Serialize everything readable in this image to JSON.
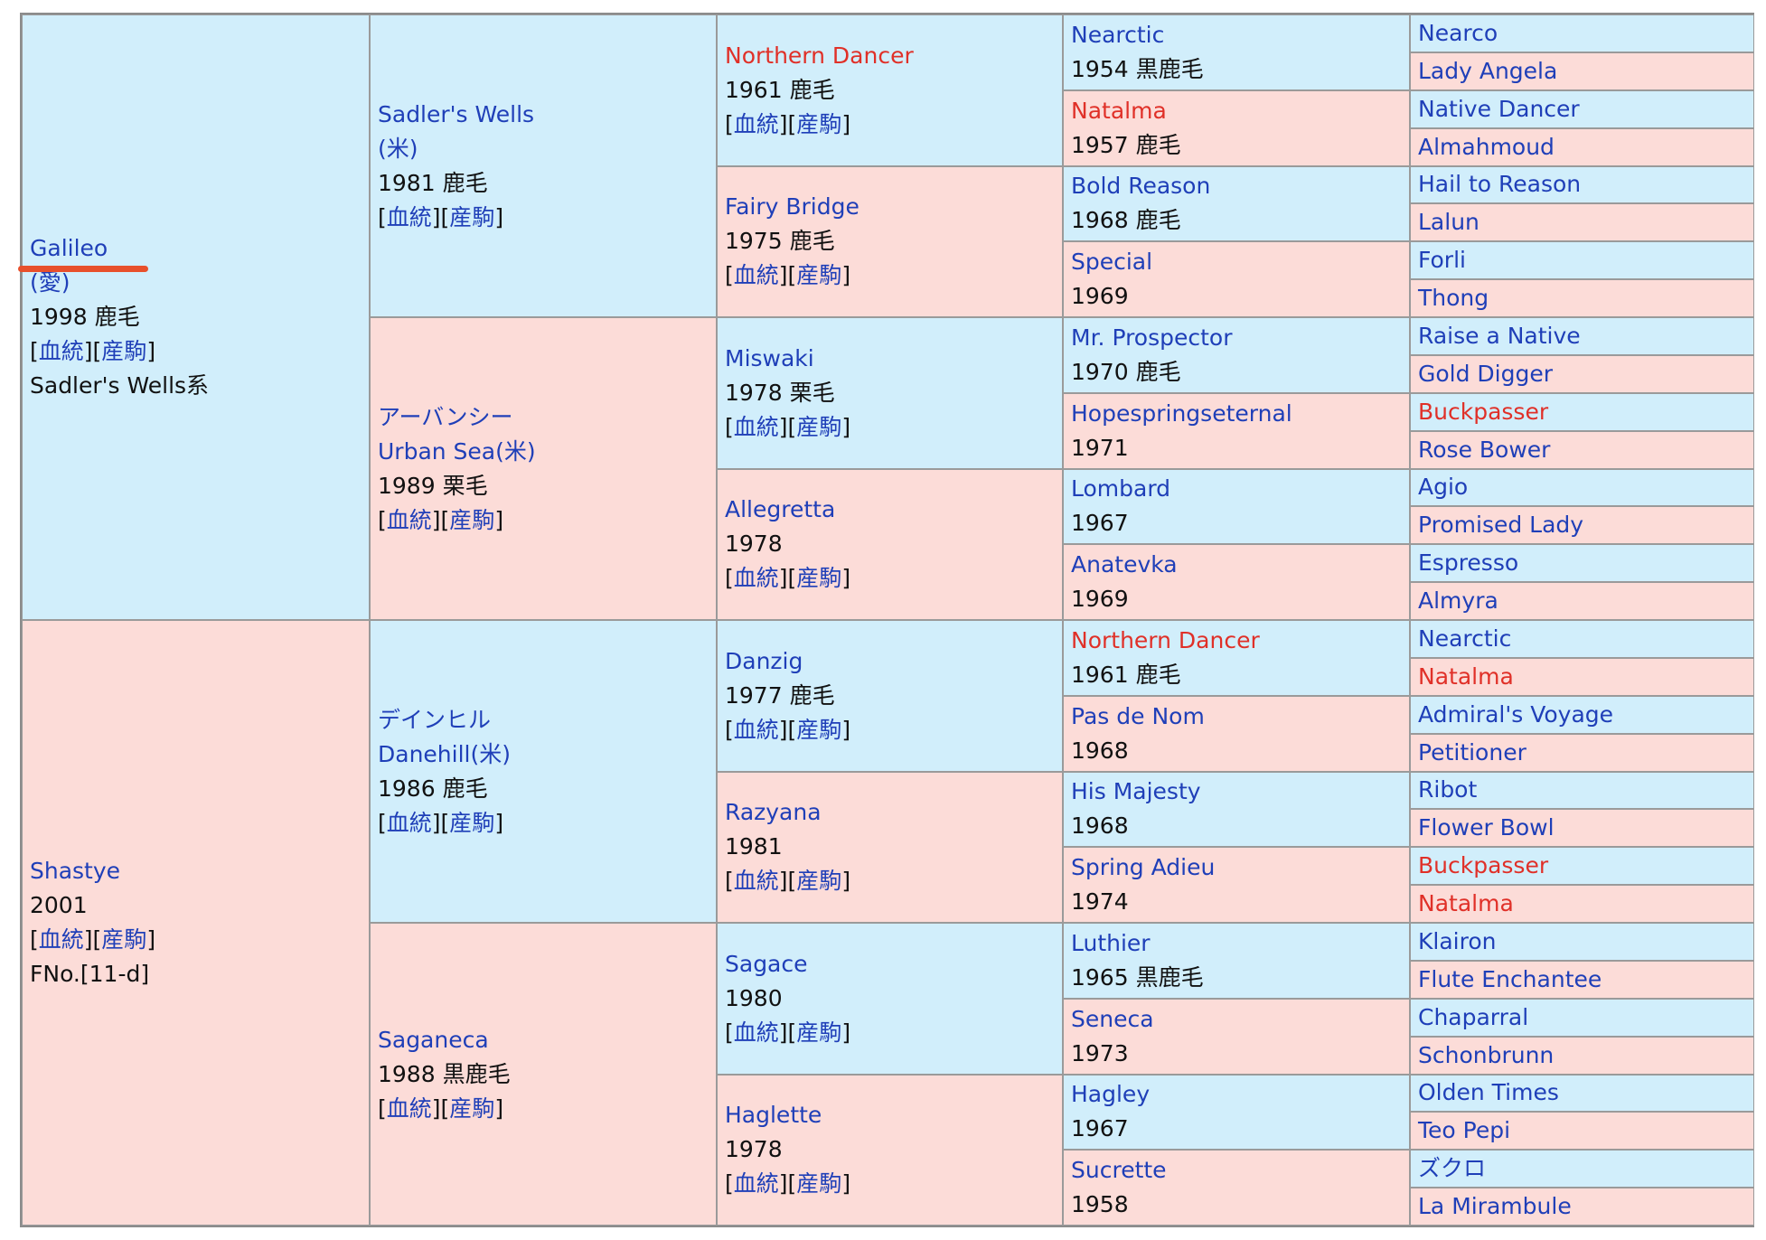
{
  "link_labels": {
    "pedigree": "血統",
    "offspring": "産駒"
  },
  "colors": {
    "male_bg": "#d1eefb",
    "female_bg": "#fcdcd8",
    "link": "#1f3fb8",
    "highlight": "#e03028",
    "border": "#9a9a9a",
    "annotation": "#e8502c"
  },
  "gen1": [
    {
      "name": "Galileo",
      "name2": "(愛)",
      "info": "1998 鹿毛",
      "links": true,
      "extra": "Sadler's Wells系",
      "sex": "m"
    },
    {
      "name": "Shastye",
      "info": "2001",
      "links": true,
      "extra": "FNo.[11-d]",
      "sex": "f"
    }
  ],
  "gen2": [
    {
      "name": "Sadler's Wells",
      "name2": "(米)",
      "info": "1981 鹿毛",
      "links": true,
      "sex": "m"
    },
    {
      "name": "アーバンシー",
      "name2": "Urban Sea(米)",
      "info": "1989 栗毛",
      "links": true,
      "sex": "f"
    },
    {
      "name": "デインヒル",
      "name2": "Danehill(米)",
      "info": "1986 鹿毛",
      "links": true,
      "sex": "m"
    },
    {
      "name": "Saganeca",
      "info": "1988 黒鹿毛",
      "links": true,
      "sex": "f"
    }
  ],
  "gen3": [
    {
      "name": "Northern Dancer",
      "info": "1961 鹿毛",
      "links": true,
      "sex": "m",
      "highlight": true
    },
    {
      "name": "Fairy Bridge",
      "info": "1975 鹿毛",
      "links": true,
      "sex": "f"
    },
    {
      "name": "Miswaki",
      "info": "1978 栗毛",
      "links": true,
      "sex": "m"
    },
    {
      "name": "Allegretta",
      "info": "1978",
      "links": true,
      "sex": "f"
    },
    {
      "name": "Danzig",
      "info": "1977 鹿毛",
      "links": true,
      "sex": "m"
    },
    {
      "name": "Razyana",
      "info": "1981",
      "links": true,
      "sex": "f"
    },
    {
      "name": "Sagace",
      "info": "1980",
      "links": true,
      "sex": "m"
    },
    {
      "name": "Haglette",
      "info": "1978",
      "links": true,
      "sex": "f"
    }
  ],
  "gen4": [
    {
      "name": "Nearctic",
      "info": "1954 黒鹿毛",
      "sex": "m"
    },
    {
      "name": "Natalma",
      "info": "1957 鹿毛",
      "sex": "f",
      "highlight": true
    },
    {
      "name": "Bold Reason",
      "info": "1968 鹿毛",
      "sex": "m"
    },
    {
      "name": "Special",
      "info": "1969",
      "sex": "f"
    },
    {
      "name": "Mr. Prospector",
      "info": "1970 鹿毛",
      "sex": "m"
    },
    {
      "name": "Hopespringseternal",
      "info": "1971",
      "sex": "f"
    },
    {
      "name": "Lombard",
      "info": "1967",
      "sex": "m"
    },
    {
      "name": "Anatevka",
      "info": "1969",
      "sex": "f"
    },
    {
      "name": "Northern Dancer",
      "info": "1961 鹿毛",
      "sex": "m",
      "highlight": true
    },
    {
      "name": "Pas de Nom",
      "info": "1968",
      "sex": "f"
    },
    {
      "name": "His Majesty",
      "info": "1968",
      "sex": "m"
    },
    {
      "name": "Spring Adieu",
      "info": "1974",
      "sex": "f"
    },
    {
      "name": "Luthier",
      "info": "1965 黒鹿毛",
      "sex": "m"
    },
    {
      "name": "Seneca",
      "info": "1973",
      "sex": "f"
    },
    {
      "name": "Hagley",
      "info": "1967",
      "sex": "m"
    },
    {
      "name": "Sucrette",
      "info": "1958",
      "sex": "f"
    }
  ],
  "gen5": [
    {
      "name": "Nearco",
      "sex": "m"
    },
    {
      "name": "Lady Angela",
      "sex": "f"
    },
    {
      "name": "Native Dancer",
      "sex": "m"
    },
    {
      "name": "Almahmoud",
      "sex": "f"
    },
    {
      "name": "Hail to Reason",
      "sex": "m"
    },
    {
      "name": "Lalun",
      "sex": "f"
    },
    {
      "name": "Forli",
      "sex": "m"
    },
    {
      "name": "Thong",
      "sex": "f"
    },
    {
      "name": "Raise a Native",
      "sex": "m"
    },
    {
      "name": "Gold Digger",
      "sex": "f"
    },
    {
      "name": "Buckpasser",
      "sex": "m",
      "highlight": true
    },
    {
      "name": "Rose Bower",
      "sex": "f"
    },
    {
      "name": "Agio",
      "sex": "m"
    },
    {
      "name": "Promised Lady",
      "sex": "f"
    },
    {
      "name": "Espresso",
      "sex": "m"
    },
    {
      "name": "Almyra",
      "sex": "f"
    },
    {
      "name": "Nearctic",
      "sex": "m"
    },
    {
      "name": "Natalma",
      "sex": "f",
      "highlight": true
    },
    {
      "name": "Admiral's Voyage",
      "sex": "m"
    },
    {
      "name": "Petitioner",
      "sex": "f"
    },
    {
      "name": "Ribot",
      "sex": "m"
    },
    {
      "name": "Flower Bowl",
      "sex": "f"
    },
    {
      "name": "Buckpasser",
      "sex": "m",
      "highlight": true
    },
    {
      "name": "Natalma",
      "sex": "f",
      "highlight": true
    },
    {
      "name": "Klairon",
      "sex": "m"
    },
    {
      "name": "Flute Enchantee",
      "sex": "f"
    },
    {
      "name": "Chaparral",
      "sex": "m"
    },
    {
      "name": "Schonbrunn",
      "sex": "f"
    },
    {
      "name": "Olden Times",
      "sex": "m"
    },
    {
      "name": "Teo Pepi",
      "sex": "f"
    },
    {
      "name": "ズクロ",
      "sex": "m"
    },
    {
      "name": "La Mirambule",
      "sex": "f"
    }
  ]
}
